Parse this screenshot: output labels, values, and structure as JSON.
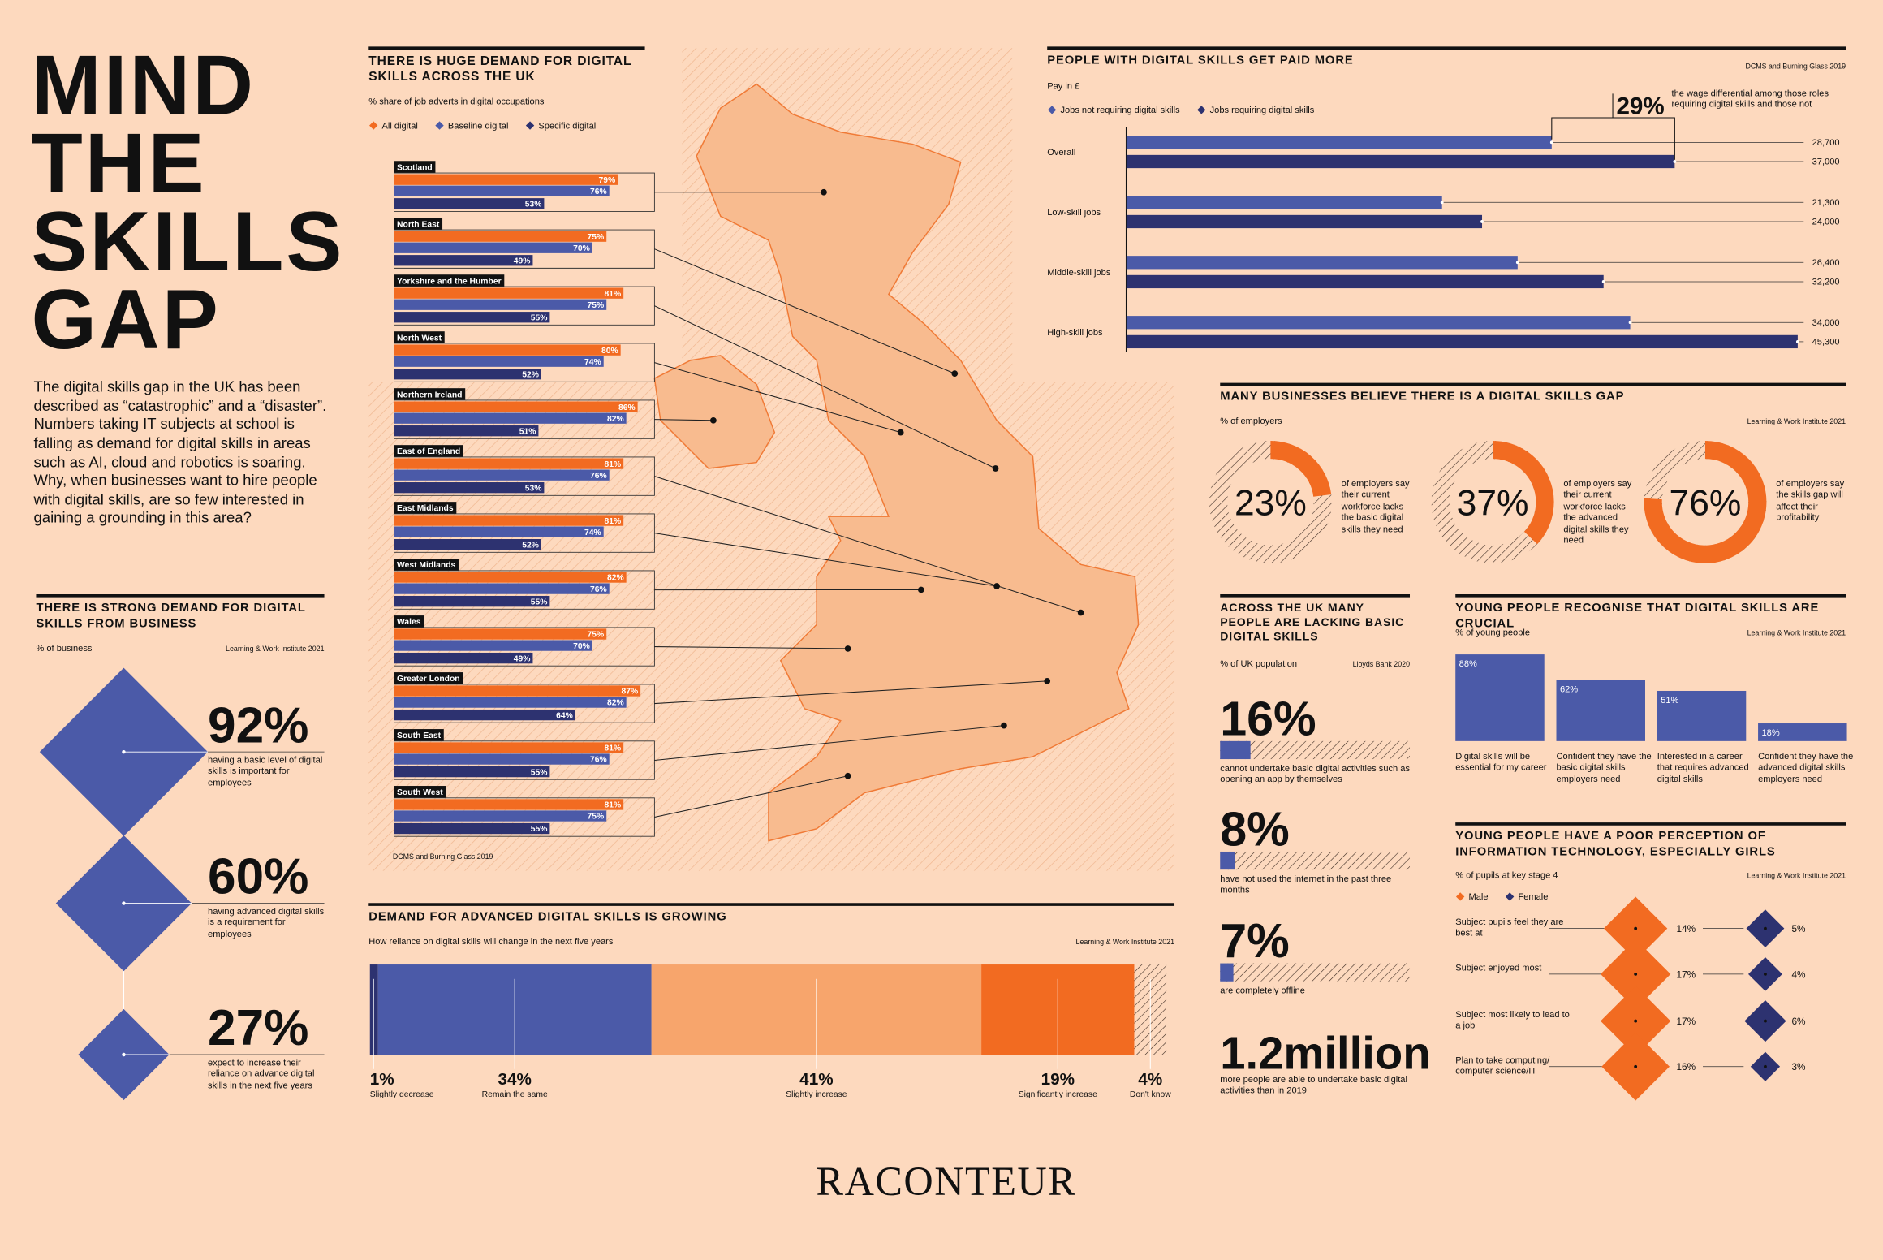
{
  "header": {
    "title_lines": [
      "MIND",
      "THE",
      "SKILLS",
      "GAP"
    ],
    "intro": "The digital skills gap in the UK has been described as “catastrophic” and a “disaster”. Numbers taking IT subjects at school is falling as demand for digital skills in areas such as AI, cloud and robotics is soaring. Why, when businesses want to hire people with digital skills, are so few interested in gaining a grounding in this area?"
  },
  "chart_data": [
    {
      "type": "diamond",
      "title": "THERE IS STRONG DEMAND FOR DIGITAL SKILLS FROM BUSINESS",
      "subtitle": "% of business",
      "source": "Learning & Work Institute 2021",
      "color": "#4b5aa8",
      "values": [
        92,
        60,
        27
      ],
      "value_labels": [
        "92%",
        "60%",
        "27%"
      ],
      "descriptions": [
        "having a basic level of digital skills is important for employees",
        "having advanced digital skills is a requirement for employees",
        "expect to increase their reliance on advance digital skills in the next five years"
      ]
    },
    {
      "type": "bar",
      "title": "THERE IS HUGE DEMAND FOR DIGITAL SKILLS ACROSS THE UK",
      "subtitle": "% share of job adverts in digital occupations",
      "source": "DCMS and Burning Glass 2019",
      "categories": [
        "Scotland",
        "North East",
        "Yorkshire and the Humber",
        "North West",
        "Northern Ireland",
        "East of England",
        "East Midlands",
        "West Midlands",
        "Wales",
        "Greater London",
        "South East",
        "South West"
      ],
      "series": [
        {
          "name": "All digital",
          "color": "#f26b21",
          "values": [
            79,
            75,
            81,
            80,
            86,
            81,
            81,
            82,
            75,
            87,
            81,
            81
          ],
          "value_labels": [
            "79%",
            "75%",
            "81%",
            "80%",
            "86%",
            "81%",
            "81%",
            "82%",
            "75%",
            "87%",
            "81%",
            "81%"
          ]
        },
        {
          "name": "Baseline digital",
          "color": "#4b5aa8",
          "values": [
            76,
            70,
            75,
            74,
            82,
            76,
            74,
            76,
            70,
            82,
            76,
            75
          ],
          "value_labels": [
            "76%",
            "70%",
            "75%",
            "74%",
            "82%",
            "76%",
            "74%",
            "76%",
            "70%",
            "82%",
            "76%",
            "75%"
          ]
        },
        {
          "name": "Specific digital",
          "color": "#2d3270",
          "values": [
            53,
            49,
            55,
            52,
            51,
            53,
            52,
            55,
            49,
            64,
            55,
            55
          ],
          "value_labels": [
            "53%",
            "49%",
            "55%",
            "52%",
            "51%",
            "53%",
            "52%",
            "55%",
            "49%",
            "64%",
            "55%",
            "55%"
          ]
        }
      ]
    },
    {
      "type": "stacked-bar",
      "title": "DEMAND FOR ADVANCED DIGITAL SKILLS IS GROWING",
      "subtitle": "How reliance on digital skills will change in the next five years",
      "source": "Learning & Work Institute 2021",
      "categories": [
        "Slightly decrease",
        "Remain the same",
        "Slightly increase",
        "Significantly increase",
        "Don't know"
      ],
      "values": [
        1,
        34,
        41,
        19,
        4
      ],
      "value_labels": [
        "1%",
        "34%",
        "41%",
        "19%",
        "4%"
      ],
      "colors": [
        "#2d3270",
        "#4b5aa8",
        "#f7a56c",
        "#f26b21",
        "#3b2a22"
      ],
      "hatched": [
        false,
        false,
        false,
        false,
        true
      ]
    },
    {
      "type": "bar",
      "title": "PEOPLE WITH DIGITAL SKILLS GET PAID MORE",
      "subtitle": "Pay in £",
      "source": "DCMS and Burning Glass 2019",
      "annotation": {
        "label": "29%",
        "text": "the wage differential among those roles requiring digital skills and those not"
      },
      "categories": [
        "Overall",
        "Low-skill jobs",
        "Middle-skill jobs",
        "High-skill jobs"
      ],
      "series": [
        {
          "name": "Jobs not requiring digital skills",
          "color": "#4b5aa8",
          "values": [
            28700,
            21300,
            26400,
            34000
          ],
          "value_labels": [
            "28,700",
            "21,300",
            "26,400",
            "34,000"
          ]
        },
        {
          "name": "Jobs requiring digital skills",
          "color": "#2d3270",
          "values": [
            37000,
            24000,
            32200,
            45300
          ],
          "value_labels": [
            "37,000",
            "24,000",
            "32,200",
            "45,300"
          ]
        }
      ]
    },
    {
      "type": "donut",
      "title": "MANY BUSINESSES BELIEVE THERE IS A DIGITAL SKILLS GAP",
      "subtitle": "% of employers",
      "source": "Learning & Work Institute 2021",
      "color": "#f26b21",
      "values": [
        23,
        37,
        76
      ],
      "value_labels": [
        "23%",
        "37%",
        "76%"
      ],
      "descriptions": [
        "of employers say their current workforce lacks the basic digital skills they need",
        "of employers say their current workforce lacks the advanced digital skills they need",
        "of employers say the skills gap will affect their profitability"
      ]
    },
    {
      "type": "progress",
      "title": "ACROSS THE UK MANY PEOPLE ARE LACKING BASIC DIGITAL SKILLS",
      "subtitle": "% of UK population",
      "source": "Lloyds Bank 2020",
      "color": "#4b5aa8",
      "values": [
        16,
        8,
        7
      ],
      "value_labels": [
        "16%",
        "8%",
        "7%"
      ],
      "descriptions": [
        "cannot undertake basic digital activities such as opening an app by themselves",
        "have not used the internet in the past three months",
        "are completely offline"
      ],
      "highlight": {
        "label": "1.2million",
        "description": "more people are able to undertake basic digital activities than in 2019"
      }
    },
    {
      "type": "column",
      "title": "YOUNG PEOPLE RECOGNISE THAT DIGITAL SKILLS ARE CRUCIAL",
      "subtitle": "% of young people",
      "source": "Learning & Work Institute 2021",
      "color": "#4b5aa8",
      "categories": [
        "Digital skills will be essential for my career",
        "Confident they have the basic digital skills employers need",
        "Interested in a career that requires advanced digital skills",
        "Confident they have the advanced digital skills employers need"
      ],
      "values": [
        88,
        62,
        51,
        18
      ],
      "value_labels": [
        "88%",
        "62%",
        "51%",
        "18%"
      ]
    },
    {
      "type": "diamond-pair",
      "title": "YOUNG PEOPLE HAVE A POOR PERCEPTION OF INFORMATION TECHNOLOGY, ESPECIALLY GIRLS",
      "subtitle": "% of pupils at key stage 4",
      "source": "Learning & Work Institute 2021",
      "categories": [
        "Subject pupils feel they are best at",
        "Subject enjoyed most",
        "Subject most likely to lead to a job",
        "Plan to take computing/ computer science/IT"
      ],
      "series": [
        {
          "name": "Male",
          "color": "#f26b21",
          "values": [
            14,
            17,
            17,
            16
          ],
          "value_labels": [
            "14%",
            "17%",
            "17%",
            "16%"
          ]
        },
        {
          "name": "Female",
          "color": "#2d3270",
          "values": [
            5,
            4,
            6,
            3
          ],
          "value_labels": [
            "5%",
            "4%",
            "6%",
            "3%"
          ]
        }
      ]
    }
  ],
  "footer": {
    "logo": "RACONTEUR"
  }
}
